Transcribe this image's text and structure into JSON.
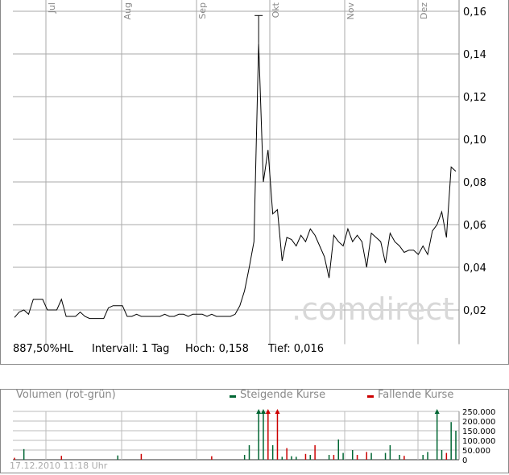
{
  "chart_data": [
    {
      "type": "line",
      "months": [
        "Jul",
        "Aug",
        "Sep",
        "Okt",
        "Nov",
        "Dez"
      ],
      "y_ticks": [
        "0,02",
        "0,04",
        "0,06",
        "0,08",
        "0,10",
        "0,12",
        "0,14",
        "0,16"
      ],
      "ylim": [
        0.01,
        0.16
      ],
      "grid": true,
      "line_color": "#000000",
      "high_marker": 0.158,
      "values": [
        0.0165,
        0.019,
        0.02,
        0.018,
        0.025,
        0.025,
        0.025,
        0.02,
        0.02,
        0.02,
        0.025,
        0.017,
        0.017,
        0.017,
        0.019,
        0.017,
        0.016,
        0.016,
        0.016,
        0.016,
        0.021,
        0.022,
        0.022,
        0.022,
        0.017,
        0.017,
        0.018,
        0.017,
        0.017,
        0.017,
        0.017,
        0.017,
        0.018,
        0.017,
        0.017,
        0.018,
        0.018,
        0.017,
        0.018,
        0.018,
        0.018,
        0.017,
        0.018,
        0.017,
        0.017,
        0.017,
        0.017,
        0.018,
        0.022,
        0.029,
        0.04,
        0.052,
        0.145,
        0.08,
        0.095,
        0.065,
        0.067,
        0.043,
        0.054,
        0.053,
        0.05,
        0.055,
        0.052,
        0.058,
        0.055,
        0.05,
        0.045,
        0.035,
        0.055,
        0.052,
        0.05,
        0.058,
        0.052,
        0.055,
        0.052,
        0.04,
        0.056,
        0.054,
        0.052,
        0.042,
        0.056,
        0.052,
        0.05,
        0.047,
        0.048,
        0.048,
        0.046,
        0.05,
        0.046,
        0.057,
        0.06,
        0.066,
        0.054,
        0.087,
        0.085
      ]
    },
    {
      "type": "bar",
      "title": "Volumen (rot-grün)",
      "legend": [
        {
          "name": "Steigende Kurse",
          "color": "#006633"
        },
        {
          "name": "Fallende Kurse",
          "color": "#cc0000"
        }
      ],
      "y_ticks": [
        "0",
        "50.000",
        "100.000",
        "150.000",
        "200.000",
        "250.000"
      ],
      "ylim": [
        0,
        250000
      ],
      "bars": [
        {
          "i": 0,
          "v": 10000,
          "t": "down"
        },
        {
          "i": 2,
          "v": 55000,
          "t": "up"
        },
        {
          "i": 10,
          "v": 20000,
          "t": "down"
        },
        {
          "i": 22,
          "v": 22000,
          "t": "up"
        },
        {
          "i": 27,
          "v": 30000,
          "t": "down"
        },
        {
          "i": 42,
          "v": 18000,
          "t": "down"
        },
        {
          "i": 49,
          "v": 25000,
          "t": "up"
        },
        {
          "i": 50,
          "v": 75000,
          "t": "up"
        },
        {
          "i": 52,
          "v": 300000,
          "t": "up"
        },
        {
          "i": 53,
          "v": 300000,
          "t": "up"
        },
        {
          "i": 54,
          "v": 300000,
          "t": "down"
        },
        {
          "i": 55,
          "v": 75000,
          "t": "up"
        },
        {
          "i": 56,
          "v": 300000,
          "t": "down"
        },
        {
          "i": 57,
          "v": 15000,
          "t": "up"
        },
        {
          "i": 58,
          "v": 60000,
          "t": "down"
        },
        {
          "i": 59,
          "v": 18000,
          "t": "up"
        },
        {
          "i": 60,
          "v": 15000,
          "t": "up"
        },
        {
          "i": 62,
          "v": 30000,
          "t": "down"
        },
        {
          "i": 63,
          "v": 25000,
          "t": "up"
        },
        {
          "i": 64,
          "v": 75000,
          "t": "down"
        },
        {
          "i": 67,
          "v": 25000,
          "t": "up"
        },
        {
          "i": 68,
          "v": 25000,
          "t": "down"
        },
        {
          "i": 69,
          "v": 105000,
          "t": "up"
        },
        {
          "i": 70,
          "v": 35000,
          "t": "up"
        },
        {
          "i": 72,
          "v": 50000,
          "t": "up"
        },
        {
          "i": 73,
          "v": 25000,
          "t": "down"
        },
        {
          "i": 75,
          "v": 40000,
          "t": "down"
        },
        {
          "i": 76,
          "v": 35000,
          "t": "up"
        },
        {
          "i": 79,
          "v": 35000,
          "t": "up"
        },
        {
          "i": 80,
          "v": 75000,
          "t": "up"
        },
        {
          "i": 82,
          "v": 25000,
          "t": "up"
        },
        {
          "i": 83,
          "v": 20000,
          "t": "down"
        },
        {
          "i": 87,
          "v": 25000,
          "t": "up"
        },
        {
          "i": 88,
          "v": 40000,
          "t": "up"
        },
        {
          "i": 90,
          "v": 300000,
          "t": "up"
        },
        {
          "i": 91,
          "v": 50000,
          "t": "up"
        },
        {
          "i": 92,
          "v": 35000,
          "t": "down"
        },
        {
          "i": 93,
          "v": 195000,
          "t": "up"
        },
        {
          "i": 94,
          "v": 150000,
          "t": "up"
        }
      ]
    }
  ],
  "info": {
    "range": "887,50%HL",
    "interval": "Intervall: 1 Tag",
    "high": "Hoch:  0,158",
    "low": "Tief:  0,016"
  },
  "watermark": ".comdirect",
  "timestamp": "17.12.2010 11:18 Uhr"
}
